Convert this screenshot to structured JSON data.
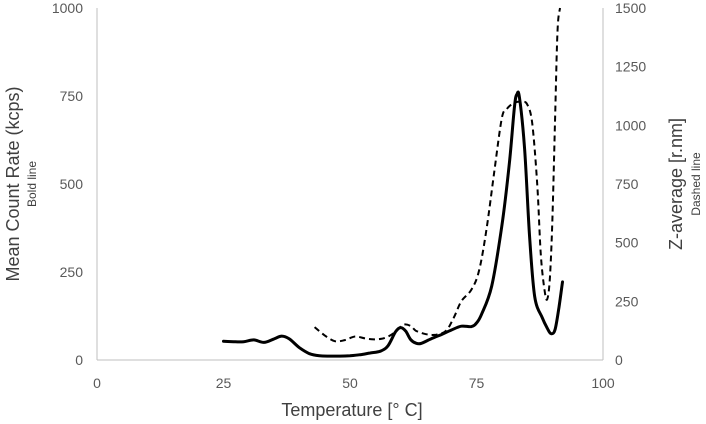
{
  "chart_data": {
    "type": "line",
    "x_label": "Temperature  [° C]",
    "y_left_label": "Mean Count Rate (kcps)",
    "y_left_sublabel": "Bold line",
    "y_right_label": "Z-average [r.nm]",
    "y_right_sublabel": "Dashed line",
    "x_range": [
      0,
      100
    ],
    "y_left_range": [
      0,
      1000
    ],
    "y_right_range": [
      0,
      1500
    ],
    "x_ticks": [
      "0",
      "25",
      "50",
      "75",
      "100"
    ],
    "y_left_ticks": [
      "0",
      "250",
      "500",
      "750",
      "1000"
    ],
    "y_right_ticks": [
      "0",
      "250",
      "500",
      "750",
      "1000",
      "1250",
      "1500"
    ],
    "grid": false,
    "legend": "none",
    "series": [
      {
        "axis": "left",
        "style": "solid-bold",
        "color": "#000000",
        "points": [
          [
            25,
            53
          ],
          [
            27,
            52
          ],
          [
            29,
            52
          ],
          [
            31,
            57
          ],
          [
            33,
            50
          ],
          [
            35,
            60
          ],
          [
            36.5,
            68
          ],
          [
            38,
            60
          ],
          [
            40,
            35
          ],
          [
            42,
            18
          ],
          [
            44,
            12
          ],
          [
            46,
            11
          ],
          [
            48,
            11
          ],
          [
            50,
            12
          ],
          [
            52,
            15
          ],
          [
            54,
            20
          ],
          [
            56,
            25
          ],
          [
            57.5,
            40
          ],
          [
            59,
            80
          ],
          [
            60,
            92
          ],
          [
            61,
            82
          ],
          [
            62,
            58
          ],
          [
            63,
            48
          ],
          [
            64,
            47
          ],
          [
            66,
            60
          ],
          [
            68,
            72
          ],
          [
            70,
            85
          ],
          [
            72,
            96
          ],
          [
            74,
            95
          ],
          [
            75,
            105
          ],
          [
            76,
            130
          ],
          [
            78,
            210
          ],
          [
            80,
            380
          ],
          [
            81.5,
            560
          ],
          [
            82.5,
            720
          ],
          [
            83,
            755
          ],
          [
            83.5,
            745
          ],
          [
            84.5,
            600
          ],
          [
            85.5,
            350
          ],
          [
            86.5,
            180
          ],
          [
            88,
            120
          ],
          [
            89,
            90
          ],
          [
            89.7,
            75
          ],
          [
            90.5,
            85
          ],
          [
            91.3,
            150
          ],
          [
            92,
            222
          ]
        ]
      },
      {
        "axis": "right",
        "style": "dashed",
        "color": "#000000",
        "points": [
          [
            43,
            140
          ],
          [
            45,
            105
          ],
          [
            47,
            80
          ],
          [
            49,
            85
          ],
          [
            51,
            100
          ],
          [
            53,
            92
          ],
          [
            55,
            88
          ],
          [
            57,
            95
          ],
          [
            59,
            120
          ],
          [
            60.5,
            150
          ],
          [
            62,
            145
          ],
          [
            63,
            125
          ],
          [
            65,
            110
          ],
          [
            67,
            108
          ],
          [
            69,
            125
          ],
          [
            70.5,
            180
          ],
          [
            72,
            250
          ],
          [
            74,
            300
          ],
          [
            75.5,
            380
          ],
          [
            77,
            560
          ],
          [
            78.5,
            800
          ],
          [
            80,
            1030
          ],
          [
            81,
            1070
          ],
          [
            82,
            1090
          ],
          [
            83,
            1100
          ],
          [
            84,
            1100
          ],
          [
            85,
            1090
          ],
          [
            86,
            1010
          ],
          [
            87,
            750
          ],
          [
            87.7,
            450
          ],
          [
            88.5,
            290
          ],
          [
            89,
            260
          ],
          [
            89.5,
            350
          ],
          [
            90,
            600
          ],
          [
            90.5,
            1000
          ],
          [
            91,
            1400
          ],
          [
            91.5,
            1500
          ]
        ]
      }
    ]
  }
}
